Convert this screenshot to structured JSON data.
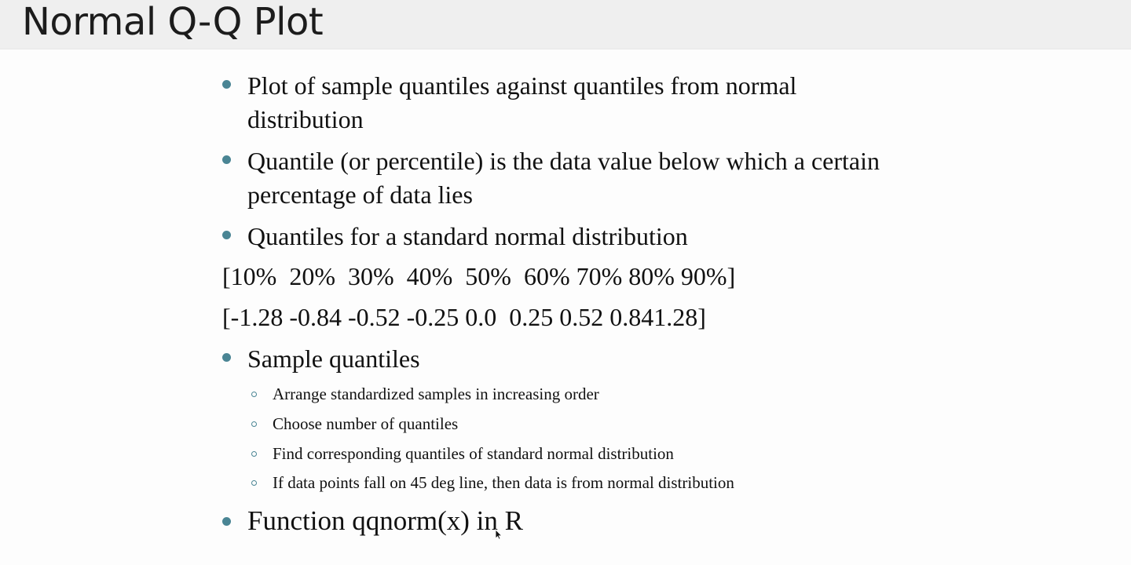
{
  "slide": {
    "title": "Normal Q-Q Plot",
    "bullets": [
      "Plot of sample quantiles against quantiles from normal distribution",
      "Quantile (or percentile) is the data value below which a certain percentage of data lies",
      "Quantiles for a standard normal distribution",
      "Sample quantiles",
      "Function qqnorm(x) in R"
    ],
    "percent_line": "[10%  20%  30%  40%  50%  60% 70% 80% 90%]",
    "value_line": "[-1.28 -0.84 -0.52 -0.25 0.0  0.25 0.52 0.841.28]",
    "sub_bullets": [
      "Arrange standardized samples in increasing order",
      "Choose number of quantiles",
      "Find corresponding quantiles of standard normal distribution",
      "If data points fall on 45 deg line, then data is from normal distribution"
    ],
    "icons": {
      "bullet": "filled-circle-icon",
      "sub_bullet": "hollow-circle-icon",
      "cursor": "mouse-pointer-icon"
    },
    "colors": {
      "title_bar": "#efefef",
      "background": "#fdfdfd",
      "bullet_accent": "#4a8594",
      "text": "#111111"
    }
  }
}
